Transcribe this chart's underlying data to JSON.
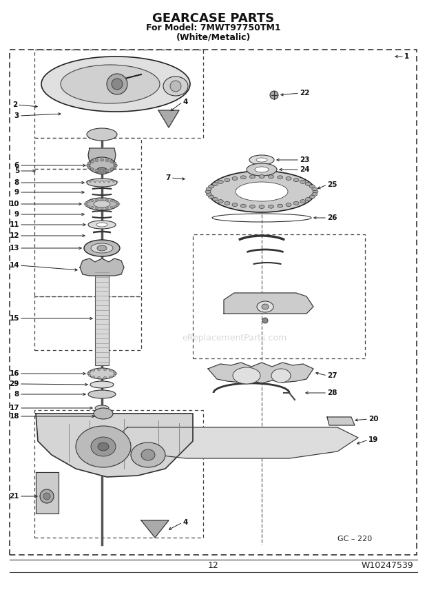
{
  "title_line1": "GEARCASE PARTS",
  "title_line2": "For Model: 7MWT97750TM1",
  "title_line3": "(White/Metalic)",
  "page_number": "12",
  "doc_number": "W10247539",
  "diagram_code": "GC – 220",
  "watermark": "eReplacementParts.com",
  "bg_color": "#ffffff",
  "fig_width": 6.2,
  "fig_height": 8.56,
  "dpi": 100
}
